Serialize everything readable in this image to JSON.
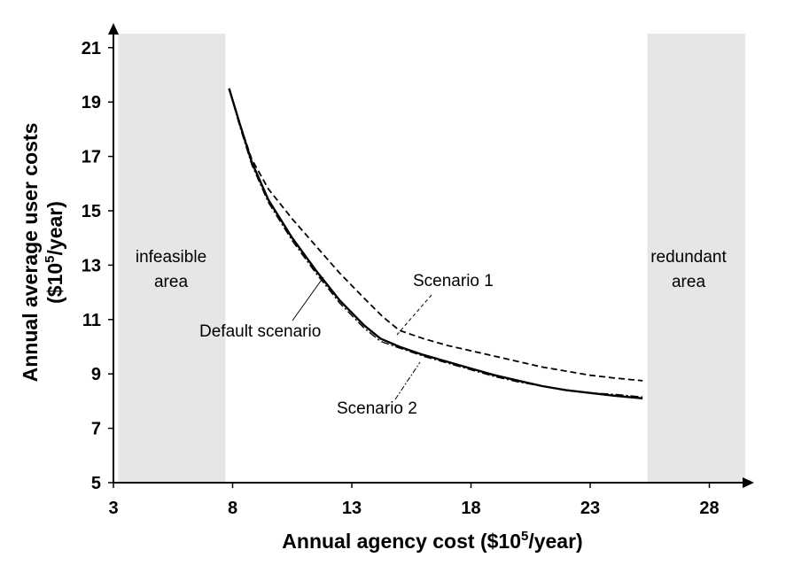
{
  "chart_data": {
    "type": "line",
    "xlabel": "Annual agency cost ($10",
    "xlabel_sup": "5",
    "xlabel_end": "/year)",
    "ylabel_line1": "Annual average user costs",
    "ylabel_line2_start": "($10",
    "ylabel_line2_sup": "5",
    "ylabel_line2_end": "/year)",
    "xlim": [
      3,
      29.5
    ],
    "ylim": [
      5,
      21.5
    ],
    "x_ticks": [
      3,
      8,
      13,
      18,
      23,
      28
    ],
    "y_ticks": [
      5,
      7,
      9,
      11,
      13,
      15,
      17,
      19,
      21
    ],
    "grid": false,
    "regions": [
      {
        "label_line1": "infeasible",
        "label_line2": "area",
        "x_range": [
          3.2,
          7.7
        ],
        "color": "#e6e6e6"
      },
      {
        "label_line1": "redundant",
        "label_line2": "area",
        "x_range": [
          25.4,
          29.5
        ],
        "color": "#e6e6e6"
      }
    ],
    "series": [
      {
        "name": "Default scenario",
        "style": "solid",
        "points": [
          [
            7.85,
            19.5
          ],
          [
            8.3,
            18.2
          ],
          [
            8.8,
            16.8
          ],
          [
            9.5,
            15.4
          ],
          [
            10.5,
            14.0
          ],
          [
            11.5,
            12.8
          ],
          [
            12.5,
            11.7
          ],
          [
            13.5,
            10.8
          ],
          [
            14.2,
            10.3
          ],
          [
            15.0,
            10.0
          ],
          [
            16.0,
            9.7
          ],
          [
            17.0,
            9.45
          ],
          [
            18.0,
            9.2
          ],
          [
            19.0,
            8.95
          ],
          [
            20.0,
            8.75
          ],
          [
            21.0,
            8.55
          ],
          [
            22.0,
            8.4
          ],
          [
            23.0,
            8.3
          ],
          [
            24.0,
            8.2
          ],
          [
            25.2,
            8.1
          ]
        ]
      },
      {
        "name": "Scenario 1",
        "style": "dashed",
        "points": [
          [
            7.85,
            19.5
          ],
          [
            8.3,
            18.2
          ],
          [
            8.8,
            16.9
          ],
          [
            9.5,
            15.8
          ],
          [
            10.5,
            14.7
          ],
          [
            11.5,
            13.7
          ],
          [
            12.5,
            12.7
          ],
          [
            13.5,
            11.8
          ],
          [
            14.3,
            11.1
          ],
          [
            15.0,
            10.6
          ],
          [
            16.0,
            10.3
          ],
          [
            17.0,
            10.05
          ],
          [
            18.0,
            9.85
          ],
          [
            19.0,
            9.65
          ],
          [
            20.0,
            9.45
          ],
          [
            21.0,
            9.25
          ],
          [
            22.0,
            9.1
          ],
          [
            23.0,
            8.95
          ],
          [
            24.0,
            8.85
          ],
          [
            25.2,
            8.75
          ]
        ]
      },
      {
        "name": "Scenario 2",
        "style": "dash-dot",
        "points": [
          [
            7.85,
            19.5
          ],
          [
            8.3,
            18.1
          ],
          [
            8.8,
            16.7
          ],
          [
            9.5,
            15.3
          ],
          [
            10.5,
            13.9
          ],
          [
            11.5,
            12.7
          ],
          [
            12.5,
            11.6
          ],
          [
            13.5,
            10.7
          ],
          [
            14.2,
            10.2
          ],
          [
            15.0,
            9.95
          ],
          [
            16.0,
            9.65
          ],
          [
            17.0,
            9.4
          ],
          [
            18.0,
            9.15
          ],
          [
            19.0,
            8.9
          ],
          [
            20.0,
            8.7
          ],
          [
            21.0,
            8.55
          ],
          [
            22.0,
            8.4
          ],
          [
            23.0,
            8.3
          ],
          [
            24.0,
            8.25
          ],
          [
            25.2,
            8.15
          ]
        ]
      }
    ],
    "annotations": [
      {
        "text": "Scenario 1",
        "series": "Scenario 1"
      },
      {
        "text": "Default scenario",
        "series": "Default scenario"
      },
      {
        "text": "Scenario 2",
        "series": "Scenario 2"
      }
    ],
    "colors": {
      "line": "#000000",
      "region": "#e6e6e6"
    }
  }
}
